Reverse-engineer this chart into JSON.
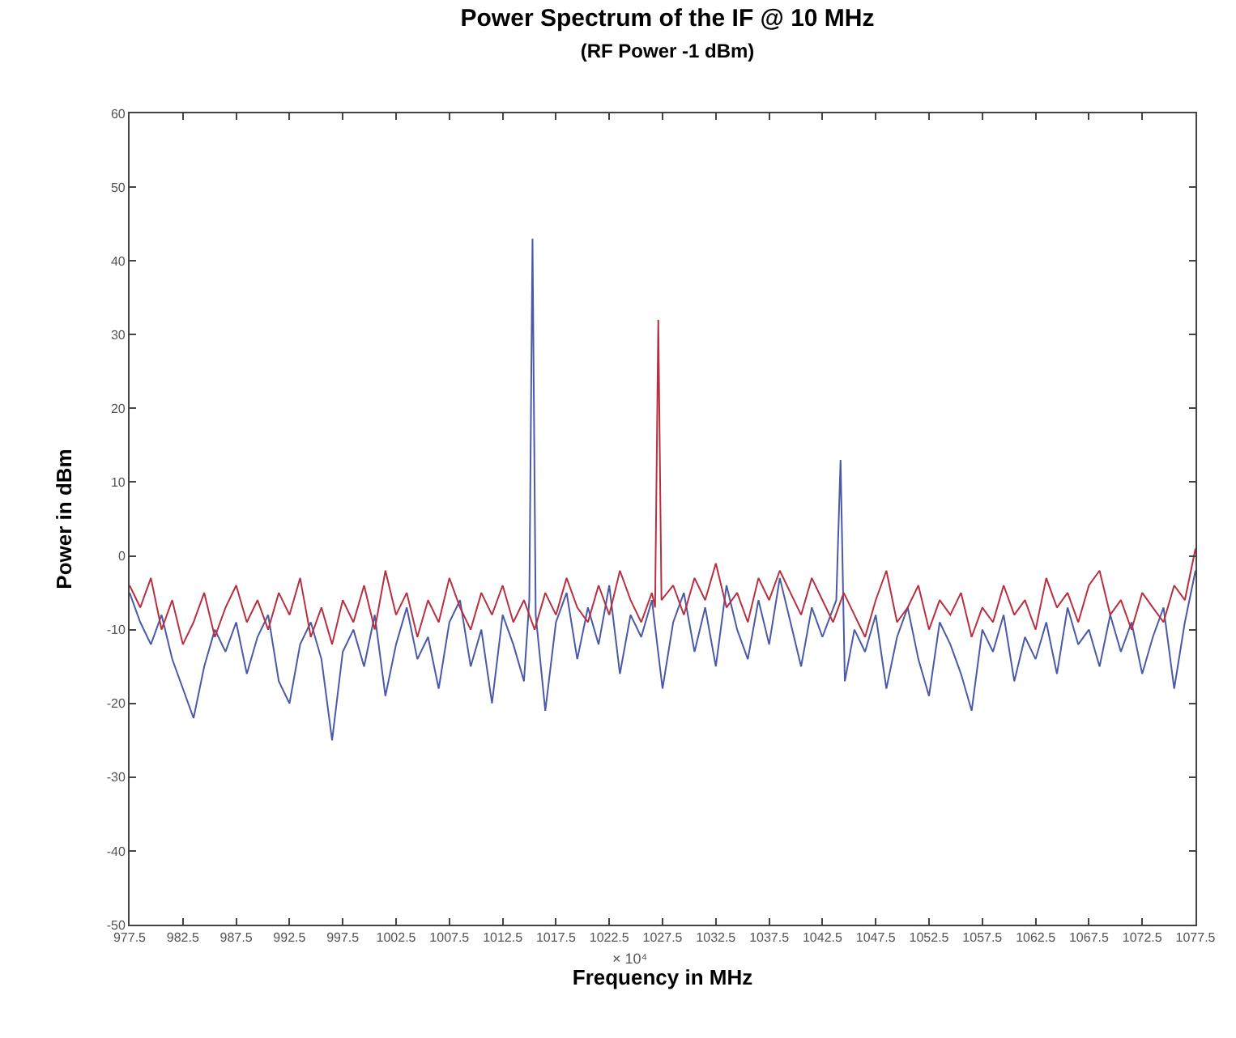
{
  "chart_data": {
    "type": "line",
    "title": "Power Spectrum of the IF @ 10 MHz",
    "subtitle": "(RF Power -1 dBm)",
    "xlabel": "Frequency in MHz",
    "ylabel": "Power in dBm",
    "annotations": [
      "× 10⁴"
    ],
    "xlim": [
      977.5,
      1077.5
    ],
    "xticks": [
      977.5,
      982.5,
      987.5,
      992.5,
      997.5,
      1002.5,
      1007.5,
      1012.5,
      1017.5,
      1022.5,
      1027.5,
      1032.5,
      1037.5,
      1042.5,
      1047.5,
      1052.5,
      1057.5,
      1062.5,
      1067.5,
      1072.5,
      1077.5
    ],
    "ylim": [
      -50,
      60
    ],
    "yticks": [
      -50,
      -40,
      -30,
      -20,
      -10,
      0,
      10,
      20,
      30,
      40,
      50,
      60
    ],
    "marker": "none",
    "line_style": "solid",
    "series": [
      {
        "color": "#4a5aa8",
        "x": [
          977.5,
          978.5,
          979.5,
          980.5,
          981.5,
          982.5,
          983.5,
          984.5,
          985.5,
          986.5,
          987.5,
          988.5,
          989.5,
          990.5,
          991.5,
          992.5,
          993.5,
          994.5,
          995.5,
          996.5,
          997.5,
          998.5,
          999.5,
          1000.5,
          1001.5,
          1002.5,
          1003.5,
          1004.5,
          1005.5,
          1006.5,
          1007.5,
          1008.5,
          1009.5,
          1010.5,
          1011.5,
          1012.5,
          1013.5,
          1014.5,
          1015.0,
          1015.3,
          1015.6,
          1016.5,
          1017.5,
          1018.5,
          1019.5,
          1020.5,
          1021.5,
          1022.5,
          1023.5,
          1024.5,
          1025.5,
          1026.5,
          1027.5,
          1028.5,
          1029.5,
          1030.5,
          1031.5,
          1032.5,
          1033.5,
          1034.5,
          1035.5,
          1036.5,
          1037.5,
          1038.5,
          1039.5,
          1040.5,
          1041.5,
          1042.5,
          1043.8,
          1044.2,
          1044.6,
          1045.5,
          1046.5,
          1047.5,
          1048.5,
          1049.5,
          1050.5,
          1051.5,
          1052.5,
          1053.5,
          1054.5,
          1055.5,
          1056.5,
          1057.5,
          1058.5,
          1059.5,
          1060.5,
          1061.5,
          1062.5,
          1063.5,
          1064.5,
          1065.5,
          1066.5,
          1067.5,
          1068.5,
          1069.5,
          1070.5,
          1071.5,
          1072.5,
          1073.5,
          1074.5,
          1075.5,
          1076.5,
          1077.5
        ],
        "values": [
          -5,
          -9,
          -12,
          -8,
          -14,
          -18,
          -22,
          -15,
          -10,
          -13,
          -9,
          -16,
          -11,
          -8,
          -17,
          -20,
          -12,
          -9,
          -14,
          -25,
          -13,
          -10,
          -15,
          -8,
          -19,
          -12,
          -7,
          -14,
          -11,
          -18,
          -9,
          -6,
          -15,
          -10,
          -20,
          -8,
          -12,
          -17,
          -6,
          43,
          -8,
          -21,
          -9,
          -5,
          -14,
          -7,
          -12,
          -4,
          -16,
          -8,
          -11,
          -6,
          -18,
          -9,
          -5,
          -13,
          -7,
          -15,
          -4,
          -10,
          -14,
          -6,
          -12,
          -3,
          -9,
          -15,
          -7,
          -11,
          -6,
          13,
          -17,
          -10,
          -13,
          -8,
          -18,
          -11,
          -7,
          -14,
          -19,
          -9,
          -12,
          -16,
          -21,
          -10,
          -13,
          -8,
          -17,
          -11,
          -14,
          -9,
          -16,
          -7,
          -12,
          -10,
          -15,
          -8,
          -13,
          -9,
          -16,
          -11,
          -7,
          -18,
          -9,
          -2
        ]
      },
      {
        "color": "#b83040",
        "x": [
          977.5,
          978.5,
          979.5,
          980.5,
          981.5,
          982.5,
          983.5,
          984.5,
          985.5,
          986.5,
          987.5,
          988.5,
          989.5,
          990.5,
          991.5,
          992.5,
          993.5,
          994.5,
          995.5,
          996.5,
          997.5,
          998.5,
          999.5,
          1000.5,
          1001.5,
          1002.5,
          1003.5,
          1004.5,
          1005.5,
          1006.5,
          1007.5,
          1008.5,
          1009.5,
          1010.5,
          1011.5,
          1012.5,
          1013.5,
          1014.5,
          1015.5,
          1016.5,
          1017.5,
          1018.5,
          1019.5,
          1020.5,
          1021.5,
          1022.5,
          1023.5,
          1024.5,
          1025.5,
          1026.5,
          1026.8,
          1027.1,
          1027.4,
          1028.5,
          1029.5,
          1030.5,
          1031.5,
          1032.5,
          1033.5,
          1034.5,
          1035.5,
          1036.5,
          1037.5,
          1038.5,
          1039.5,
          1040.5,
          1041.5,
          1042.5,
          1043.5,
          1044.5,
          1045.5,
          1046.5,
          1047.5,
          1048.5,
          1049.5,
          1050.5,
          1051.5,
          1052.5,
          1053.5,
          1054.5,
          1055.5,
          1056.5,
          1057.5,
          1058.5,
          1059.5,
          1060.5,
          1061.5,
          1062.5,
          1063.5,
          1064.5,
          1065.5,
          1066.5,
          1067.5,
          1068.5,
          1069.5,
          1070.5,
          1071.5,
          1072.5,
          1073.5,
          1074.5,
          1075.5,
          1076.5,
          1077.5
        ],
        "values": [
          -4,
          -7,
          -3,
          -10,
          -6,
          -12,
          -9,
          -5,
          -11,
          -7,
          -4,
          -9,
          -6,
          -10,
          -5,
          -8,
          -3,
          -11,
          -7,
          -12,
          -6,
          -9,
          -4,
          -10,
          -2,
          -8,
          -5,
          -11,
          -6,
          -9,
          -3,
          -7,
          -10,
          -5,
          -8,
          -4,
          -9,
          -6,
          -10,
          -5,
          -8,
          -3,
          -7,
          -9,
          -4,
          -8,
          -2,
          -6,
          -9,
          -5,
          -7,
          32,
          -6,
          -4,
          -8,
          -3,
          -6,
          -1,
          -7,
          -5,
          -9,
          -3,
          -6,
          -2,
          -5,
          -8,
          -3,
          -6,
          -9,
          -5,
          -8,
          -11,
          -6,
          -2,
          -9,
          -7,
          -4,
          -10,
          -6,
          -8,
          -5,
          -11,
          -7,
          -9,
          -4,
          -8,
          -6,
          -10,
          -3,
          -7,
          -5,
          -9,
          -4,
          -2,
          -8,
          -6,
          -10,
          -5,
          -7,
          -9,
          -4,
          -6,
          1
        ]
      }
    ]
  }
}
